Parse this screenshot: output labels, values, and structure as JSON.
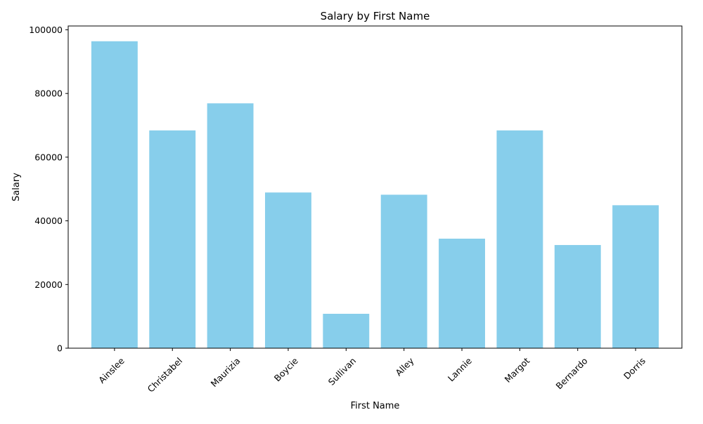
{
  "chart_data": {
    "type": "bar",
    "title": "Salary by First Name",
    "xlabel": "First Name",
    "ylabel": "Salary",
    "categories": [
      "Ainslee",
      "Christabel",
      "Maurizia",
      "Boycie",
      "Sullivan",
      "Alley",
      "Lannie",
      "Margot",
      "Bernardo",
      "Dorris"
    ],
    "values": [
      96400,
      68400,
      76900,
      48900,
      10800,
      48200,
      34400,
      68400,
      32400,
      44900
    ],
    "ylim": [
      0,
      101200
    ],
    "yticks": [
      0,
      20000,
      40000,
      60000,
      80000,
      100000
    ],
    "ytick_labels": [
      "0",
      "20000",
      "40000",
      "60000",
      "80000",
      "100000"
    ],
    "bar_color": "#87CEEB",
    "grid": false,
    "xtick_rotation": 45
  }
}
